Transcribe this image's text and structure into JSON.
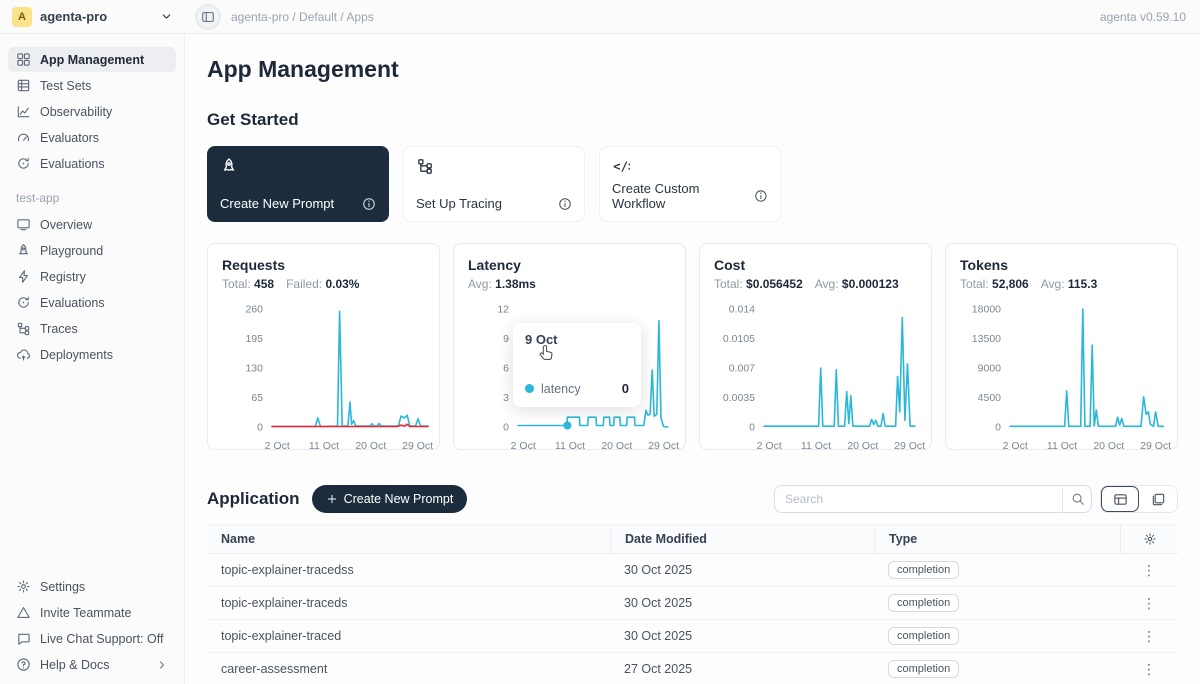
{
  "colors": {
    "primary_dark": "#1c2c3d",
    "chart_line": "#2bb7d9",
    "chart_failed": "#f5222d",
    "avatar_bg": "#fbe389"
  },
  "topbar": {
    "breadcrumb": "agenta-pro / Default / Apps",
    "version": "agenta v0.59.10"
  },
  "workspace": {
    "avatar_letter": "A",
    "name": "agenta-pro"
  },
  "sidebar": {
    "main_items": [
      {
        "label": "App Management",
        "icon": "grid",
        "selected": true
      },
      {
        "label": "Test Sets",
        "icon": "table"
      },
      {
        "label": "Observability",
        "icon": "chart-line"
      },
      {
        "label": "Evaluators",
        "icon": "gauge"
      },
      {
        "label": "Evaluations",
        "icon": "refresh"
      }
    ],
    "section_label": "test-app",
    "app_items": [
      {
        "label": "Overview",
        "icon": "monitor"
      },
      {
        "label": "Playground",
        "icon": "rocket"
      },
      {
        "label": "Registry",
        "icon": "lightning"
      },
      {
        "label": "Evaluations",
        "icon": "refresh"
      },
      {
        "label": "Traces",
        "icon": "tree"
      },
      {
        "label": "Deployments",
        "icon": "cloud-up"
      }
    ],
    "footer_items": [
      {
        "label": "Settings",
        "icon": "gear"
      },
      {
        "label": "Invite Teammate",
        "icon": "triangle"
      },
      {
        "label": "Live Chat Support: Off",
        "icon": "chat"
      },
      {
        "label": "Help & Docs",
        "icon": "help",
        "chevron": true
      }
    ]
  },
  "page": {
    "title": "App Management",
    "get_started_title": "Get Started"
  },
  "get_started_cards": [
    {
      "label": "Create New Prompt",
      "icon": "rocket",
      "dark": true
    },
    {
      "label": "Set Up Tracing",
      "icon": "tree",
      "dark": false
    },
    {
      "label": "Create Custom Workflow",
      "icon": "code",
      "dark": false
    }
  ],
  "metric_cards": [
    {
      "title": "Requests",
      "stats": [
        {
          "label": "Total:",
          "value": "458"
        },
        {
          "label": "Failed:",
          "value": "0.03%"
        }
      ]
    },
    {
      "title": "Latency",
      "stats": [
        {
          "label": "Avg:",
          "value": "1.38ms"
        }
      ]
    },
    {
      "title": "Cost",
      "stats": [
        {
          "label": "Total:",
          "value": "$0.056452"
        },
        {
          "label": "Avg:",
          "value": "$0.000123"
        }
      ]
    },
    {
      "title": "Tokens",
      "stats": [
        {
          "label": "Total:",
          "value": "52,806"
        },
        {
          "label": "Avg:",
          "value": "115.3"
        }
      ]
    }
  ],
  "chart_data": [
    {
      "type": "line",
      "title": "Requests",
      "xlabel": "",
      "ylabel": "",
      "ylim": [
        0,
        260
      ],
      "yticks": [
        0,
        65,
        130,
        195,
        260
      ],
      "xticks": [
        {
          "label": "2 Oct",
          "day": 2
        },
        {
          "label": "11 Oct",
          "day": 11
        },
        {
          "label": "20 Oct",
          "day": 20
        },
        {
          "label": "29 Oct",
          "day": 29
        }
      ],
      "series": [
        {
          "name": "requests",
          "color": "#2bb7d9",
          "points": [
            [
              1,
              1
            ],
            [
              9.3,
              1
            ],
            [
              9.8,
              20
            ],
            [
              10.3,
              1
            ],
            [
              13.6,
              2
            ],
            [
              14,
              255
            ],
            [
              14.5,
              2
            ],
            [
              15.6,
              2
            ],
            [
              16,
              55
            ],
            [
              16.3,
              6
            ],
            [
              16.7,
              14
            ],
            [
              17.1,
              2
            ],
            [
              19.8,
              2
            ],
            [
              20.2,
              7
            ],
            [
              20.6,
              2
            ],
            [
              21.2,
              2
            ],
            [
              21.6,
              8
            ],
            [
              22,
              2
            ],
            [
              25.3,
              2
            ],
            [
              25.8,
              24
            ],
            [
              26.5,
              20
            ],
            [
              27,
              26
            ],
            [
              27.5,
              2
            ],
            [
              28.6,
              2
            ],
            [
              29.1,
              18
            ],
            [
              29.6,
              2
            ],
            [
              31,
              2
            ]
          ]
        },
        {
          "name": "failed",
          "color": "#f5222d",
          "points": [
            [
              1,
              1
            ],
            [
              25,
              1
            ],
            [
              25.8,
              4
            ],
            [
              26.5,
              2
            ],
            [
              27,
              6
            ],
            [
              27.5,
              1
            ],
            [
              31,
              1
            ]
          ]
        }
      ]
    },
    {
      "type": "line",
      "title": "Latency",
      "xlabel": "",
      "ylabel": "",
      "ylim": [
        0,
        12
      ],
      "yticks": [
        0,
        3,
        6,
        9,
        12
      ],
      "xticks": [
        {
          "label": "2 Oct",
          "day": 2
        },
        {
          "label": "11 Oct",
          "day": 11
        },
        {
          "label": "20 Oct",
          "day": 20
        },
        {
          "label": "29 Oct",
          "day": 29
        }
      ],
      "marker": {
        "day": 10.5,
        "value": 0.15
      },
      "series": [
        {
          "name": "latency",
          "color": "#2bb7d9",
          "points": [
            [
              1,
              0.15
            ],
            [
              10.4,
              0.15
            ],
            [
              10.5,
              1
            ],
            [
              12.8,
              1
            ],
            [
              12.9,
              0.15
            ],
            [
              14.4,
              0.15
            ],
            [
              14.5,
              1
            ],
            [
              16,
              1
            ],
            [
              16.1,
              0.15
            ],
            [
              17.4,
              0.15
            ],
            [
              17.5,
              1
            ],
            [
              18.6,
              1
            ],
            [
              18.7,
              0.15
            ],
            [
              19.4,
              0.15
            ],
            [
              19.5,
              1
            ],
            [
              20.6,
              1
            ],
            [
              20.7,
              0.15
            ],
            [
              21.9,
              0.15
            ],
            [
              22,
              1
            ],
            [
              23.4,
              1
            ],
            [
              23.5,
              0.15
            ],
            [
              25.2,
              0.15
            ],
            [
              25.6,
              1.7
            ],
            [
              26,
              1.2
            ],
            [
              26.4,
              1.3
            ],
            [
              26.8,
              5.8
            ],
            [
              27.2,
              1.1
            ],
            [
              27.7,
              1.3
            ],
            [
              28.1,
              10.8
            ],
            [
              28.5,
              0.9
            ],
            [
              29,
              0.05
            ],
            [
              29.8,
              0
            ]
          ]
        }
      ]
    },
    {
      "type": "line",
      "title": "Cost",
      "xlabel": "",
      "ylabel": "",
      "ylim": [
        0,
        0.014
      ],
      "yticks": [
        0,
        0.0035,
        0.007,
        0.0105,
        0.014
      ],
      "xticks": [
        {
          "label": "2 Oct",
          "day": 2
        },
        {
          "label": "11 Oct",
          "day": 11
        },
        {
          "label": "20 Oct",
          "day": 20
        },
        {
          "label": "29 Oct",
          "day": 29
        }
      ],
      "series": [
        {
          "name": "cost",
          "color": "#2bb7d9",
          "points": [
            [
              1,
              0.0001
            ],
            [
              11.5,
              0.0001
            ],
            [
              11.9,
              0.007
            ],
            [
              12.3,
              0.0001
            ],
            [
              14.5,
              0.0001
            ],
            [
              14.9,
              0.0068
            ],
            [
              15.3,
              0.0001
            ],
            [
              16.5,
              0.0001
            ],
            [
              16.9,
              0.0042
            ],
            [
              17.3,
              0.0004
            ],
            [
              17.7,
              0.0037
            ],
            [
              18.1,
              0.0001
            ],
            [
              21.3,
              0.0001
            ],
            [
              21.7,
              0.0009
            ],
            [
              22.1,
              0.0003
            ],
            [
              22.5,
              0.0008
            ],
            [
              22.9,
              0.0001
            ],
            [
              23.5,
              0.0001
            ],
            [
              23.9,
              0.0016
            ],
            [
              24.3,
              0.0001
            ],
            [
              26.3,
              0.0001
            ],
            [
              26.7,
              0.006
            ],
            [
              27.1,
              0.0018
            ],
            [
              27.6,
              0.013
            ],
            [
              28.1,
              0.0008
            ],
            [
              28.6,
              0.0075
            ],
            [
              29.1,
              0.0001
            ],
            [
              30,
              0.0001
            ]
          ]
        }
      ]
    },
    {
      "type": "line",
      "title": "Tokens",
      "xlabel": "",
      "ylabel": "",
      "ylim": [
        0,
        18000
      ],
      "yticks": [
        0,
        4500,
        9000,
        13500,
        18000
      ],
      "xticks": [
        {
          "label": "2 Oct",
          "day": 2
        },
        {
          "label": "11 Oct",
          "day": 11
        },
        {
          "label": "20 Oct",
          "day": 20
        },
        {
          "label": "29 Oct",
          "day": 29
        }
      ],
      "series": [
        {
          "name": "tokens",
          "color": "#2bb7d9",
          "points": [
            [
              1,
              100
            ],
            [
              11.5,
              100
            ],
            [
              11.9,
              5500
            ],
            [
              12.3,
              100
            ],
            [
              14.6,
              100
            ],
            [
              15,
              18000
            ],
            [
              15.4,
              100
            ],
            [
              16.4,
              100
            ],
            [
              16.8,
              12500
            ],
            [
              17.2,
              150
            ],
            [
              17.6,
              2600
            ],
            [
              18,
              100
            ],
            [
              21.3,
              100
            ],
            [
              21.7,
              1500
            ],
            [
              22.1,
              300
            ],
            [
              22.5,
              1300
            ],
            [
              22.9,
              100
            ],
            [
              26.2,
              100
            ],
            [
              26.7,
              4600
            ],
            [
              27.2,
              1900
            ],
            [
              27.6,
              2300
            ],
            [
              28,
              400
            ],
            [
              28.6,
              100
            ],
            [
              29,
              2300
            ],
            [
              29.5,
              100
            ],
            [
              30.5,
              100
            ]
          ]
        }
      ]
    }
  ],
  "tooltip": {
    "date": "9 Oct",
    "series": "latency",
    "value": "0"
  },
  "application": {
    "title": "Application",
    "create_button": "Create New Prompt",
    "search_placeholder": "Search",
    "columns": [
      "Name",
      "Date Modified",
      "Type"
    ],
    "rows": [
      {
        "name": "topic-explainer-tracedss",
        "date": "30 Oct 2025",
        "type": "completion"
      },
      {
        "name": "topic-explainer-traceds",
        "date": "30 Oct 2025",
        "type": "completion"
      },
      {
        "name": "topic-explainer-traced",
        "date": "30 Oct 2025",
        "type": "completion"
      },
      {
        "name": "career-assessment",
        "date": "27 Oct 2025",
        "type": "completion"
      }
    ]
  }
}
